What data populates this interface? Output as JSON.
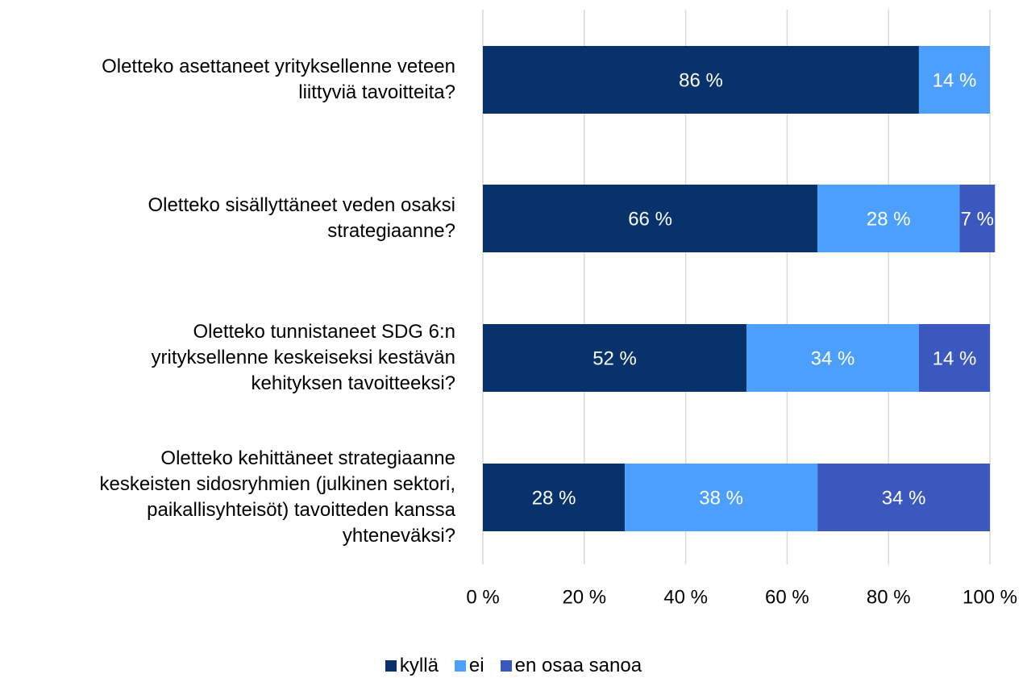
{
  "chart_data": {
    "type": "stacked_barh",
    "categories": [
      "Oletteko asettaneet yrityksellenne veteen\nliittyviä tavoitteita?",
      "Oletteko sisällyttäneet veden osaksi\nstrategiaanne?",
      "Oletteko tunnistaneet SDG 6:n\nyrityksellenne keskeiseksi kestävän\nkehityksen tavoitteeksi?",
      "Oletteko kehittäneet strategiaanne\nkeskeisten sidosryhmien (julkinen sektori,\npaikallisyhteisöt) tavoitteden kanssa\nyhteneväksi?"
    ],
    "series": [
      {
        "name": "kyllä",
        "color": "#07326b",
        "values": [
          86,
          66,
          52,
          28
        ],
        "value_labels": [
          "86 %",
          "66 %",
          "52 %",
          "28 %"
        ]
      },
      {
        "name": "ei",
        "color": "#4c9ffc",
        "values": [
          14,
          28,
          34,
          38
        ],
        "value_labels": [
          "14 %",
          "28 %",
          "34 %",
          "38 %"
        ]
      },
      {
        "name": "en osaa sanoa",
        "color": "#3a58bd",
        "values": [
          null,
          7,
          14,
          34
        ],
        "value_labels": [
          null,
          "7 %",
          "14 %",
          "34 %"
        ]
      }
    ],
    "xlim": [
      0,
      100
    ],
    "xticks": [
      {
        "value": 0,
        "label": "0 %"
      },
      {
        "value": 20,
        "label": "20 %"
      },
      {
        "value": 40,
        "label": "40 %"
      },
      {
        "value": 60,
        "label": "60 %"
      },
      {
        "value": 80,
        "label": "80 %"
      },
      {
        "value": 100,
        "label": "100 %"
      }
    ],
    "grid": true,
    "legend": "bottom"
  }
}
